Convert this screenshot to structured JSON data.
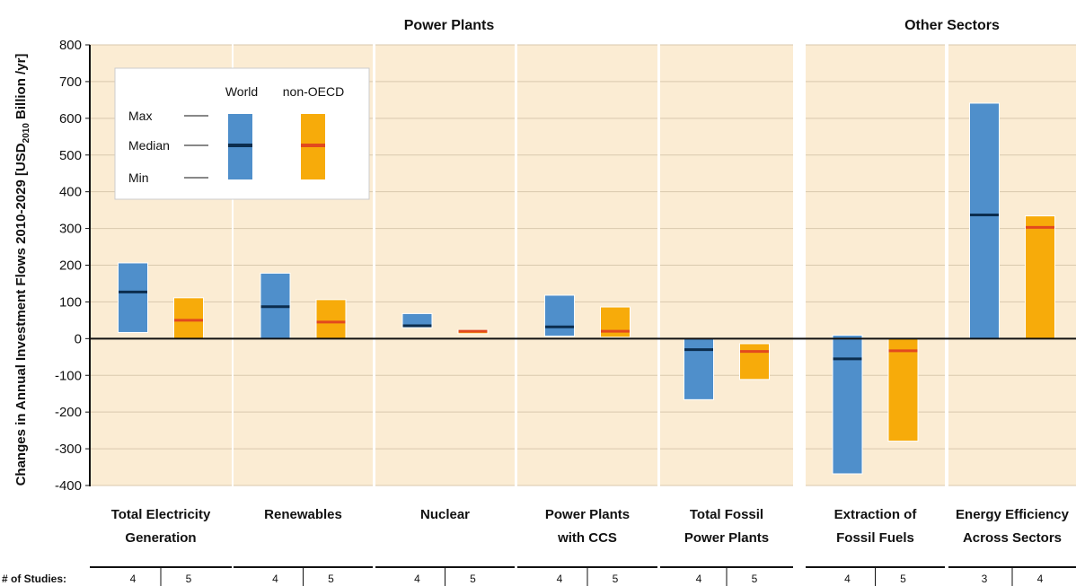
{
  "chart_data": {
    "type": "bar",
    "group_titles": [
      "Power Plants",
      "Other Sectors"
    ],
    "ylabel_pre": "Changes in Annual Investment Flows 2010-2029 [USD",
    "ylabel_sub": "2010",
    "ylabel_post": " Billion /yr]",
    "ylim": [
      -400,
      800
    ],
    "yticks": [
      -400,
      -300,
      -200,
      -100,
      0,
      100,
      200,
      300,
      400,
      500,
      600,
      700,
      800
    ],
    "grid": true,
    "legend": {
      "position": "top-left",
      "world_label": "World",
      "nonoecd_label": "non-OECD",
      "max_label": "Max",
      "median_label": "Median",
      "min_label": "Min"
    },
    "series": [
      {
        "name": "World",
        "color": "#4f8fcb",
        "median_color": "#0b2d4e"
      },
      {
        "name": "non-OECD",
        "color": "#f7ab0a",
        "median_color": "#e2491e"
      }
    ],
    "categories": [
      {
        "label": [
          "Total Electricity",
          "Generation"
        ],
        "group": "Power Plants",
        "world": {
          "min": 18,
          "median": 127,
          "max": 205
        },
        "nonoecd": {
          "min": 0,
          "median": 50,
          "max": 110
        },
        "studies": [
          4,
          5
        ]
      },
      {
        "label": [
          "Renewables"
        ],
        "group": "Power Plants",
        "world": {
          "min": 0,
          "median": 87,
          "max": 177
        },
        "nonoecd": {
          "min": 0,
          "median": 45,
          "max": 105
        },
        "studies": [
          4,
          5
        ]
      },
      {
        "label": [
          "Nuclear"
        ],
        "group": "Power Plants",
        "world": {
          "min": 31,
          "median": 35,
          "max": 67
        },
        "nonoecd": {
          "min": 18,
          "median": 20,
          "max": 22
        },
        "studies": [
          4,
          5
        ]
      },
      {
        "label": [
          "Power Plants",
          "with CCS"
        ],
        "group": "Power Plants",
        "world": {
          "min": 8,
          "median": 32,
          "max": 117
        },
        "nonoecd": {
          "min": 5,
          "median": 20,
          "max": 85
        },
        "studies": [
          4,
          5
        ]
      },
      {
        "label": [
          "Total Fossil",
          "Power Plants"
        ],
        "group": "Power Plants",
        "world": {
          "min": -165,
          "median": -30,
          "max": 0
        },
        "nonoecd": {
          "min": -110,
          "median": -35,
          "max": -15
        },
        "studies": [
          4,
          5
        ]
      },
      {
        "label": [
          "Extraction of",
          "Fossil Fuels"
        ],
        "group": "Other Sectors",
        "world": {
          "min": -367,
          "median": -55,
          "max": 8
        },
        "nonoecd": {
          "min": -278,
          "median": -33,
          "max": 0
        },
        "studies": [
          4,
          5
        ]
      },
      {
        "label": [
          "Energy Efficiency",
          "Across Sectors"
        ],
        "group": "Other Sectors",
        "world": {
          "min": 0,
          "median": 337,
          "max": 640
        },
        "nonoecd": {
          "min": 0,
          "median": 303,
          "max": 333
        },
        "studies": [
          3,
          4
        ]
      }
    ],
    "studies_label": "# of Studies:"
  }
}
